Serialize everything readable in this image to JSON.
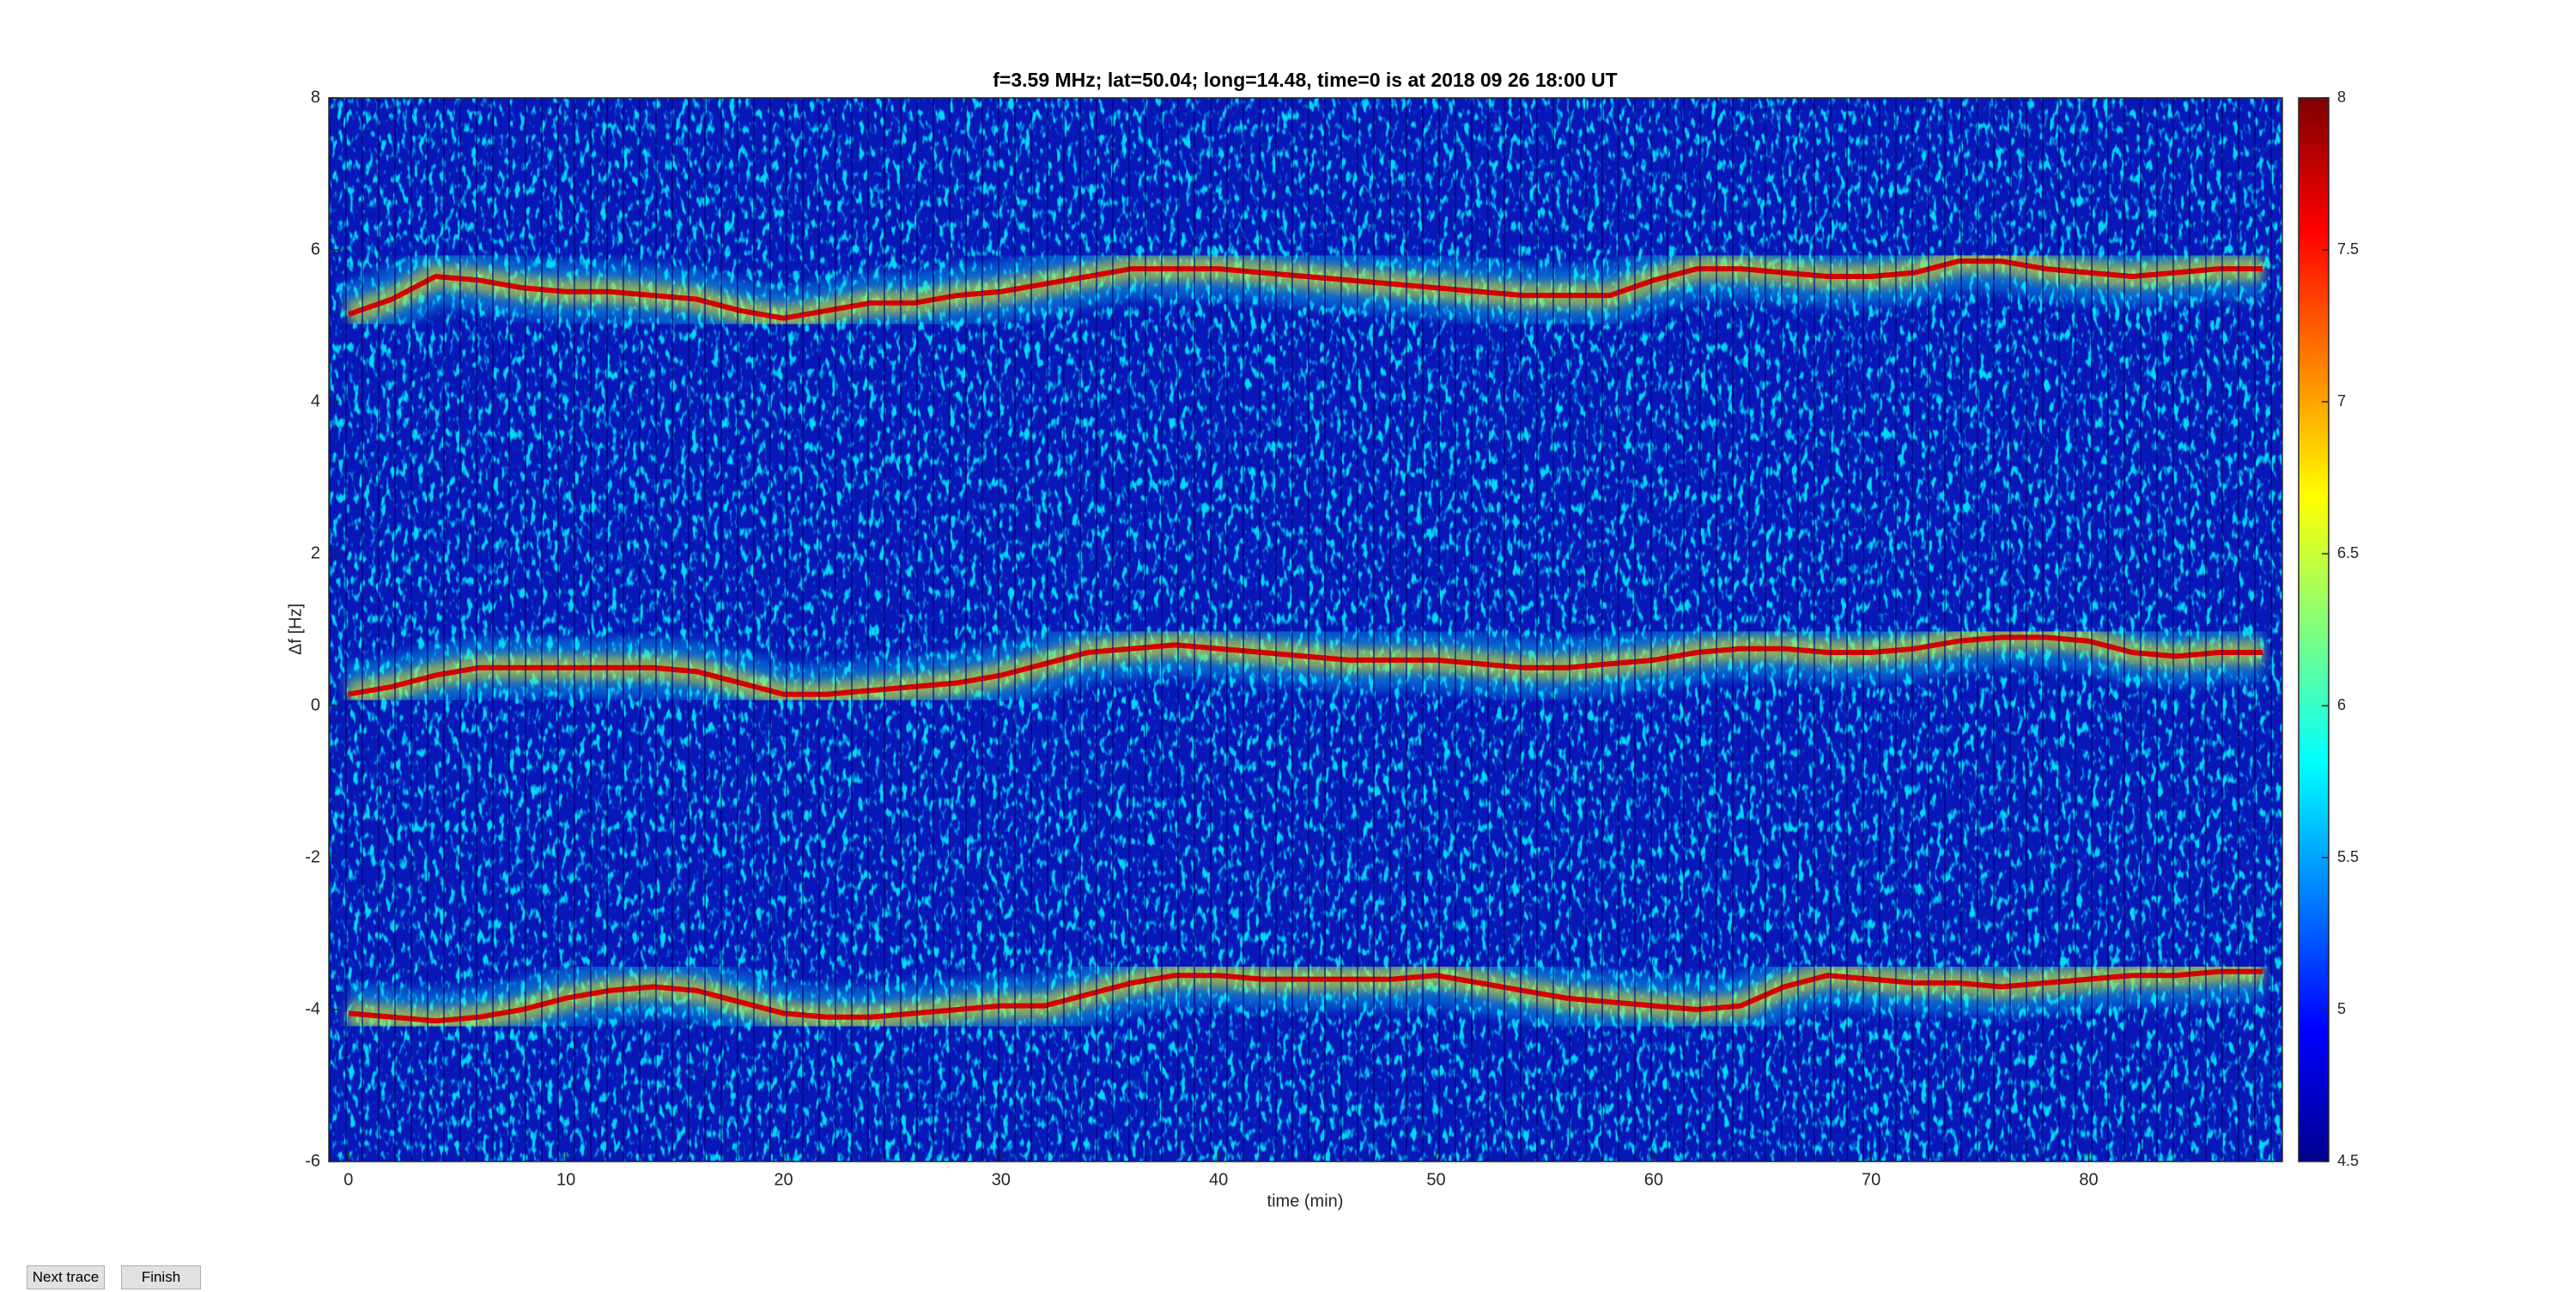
{
  "chart_data": {
    "type": "spectrogram",
    "title": "f=3.59 MHz;  lat=50.04; long=14.48, time=0 is at 2018 09 26 18:00 UT",
    "x_label": "time (min)",
    "y_label": "Δf [Hz]",
    "x": [
      0,
      2,
      4,
      6,
      8,
      10,
      12,
      14,
      16,
      18,
      20,
      22,
      24,
      26,
      28,
      30,
      32,
      34,
      36,
      38,
      40,
      42,
      44,
      46,
      48,
      50,
      52,
      54,
      56,
      58,
      60,
      62,
      64,
      66,
      68,
      70,
      72,
      74,
      76,
      78,
      80,
      82,
      84,
      86,
      88
    ],
    "series": [
      {
        "color": "#d40000",
        "values": [
          5.15,
          5.35,
          5.65,
          5.6,
          5.5,
          5.45,
          5.45,
          5.4,
          5.35,
          5.2,
          5.1,
          5.2,
          5.3,
          5.3,
          5.4,
          5.45,
          5.55,
          5.65,
          5.75,
          5.75,
          5.75,
          5.7,
          5.65,
          5.6,
          5.55,
          5.5,
          5.45,
          5.4,
          5.4,
          5.4,
          5.6,
          5.75,
          5.75,
          5.7,
          5.65,
          5.65,
          5.7,
          5.85,
          5.85,
          5.75,
          5.7,
          5.65,
          5.7,
          5.75,
          5.75
        ]
      },
      {
        "color": "#d40000",
        "values": [
          0.15,
          0.25,
          0.4,
          0.5,
          0.5,
          0.5,
          0.5,
          0.5,
          0.45,
          0.3,
          0.15,
          0.15,
          0.2,
          0.25,
          0.3,
          0.4,
          0.55,
          0.7,
          0.75,
          0.8,
          0.75,
          0.7,
          0.65,
          0.6,
          0.6,
          0.6,
          0.55,
          0.5,
          0.5,
          0.55,
          0.6,
          0.7,
          0.75,
          0.75,
          0.7,
          0.7,
          0.75,
          0.85,
          0.9,
          0.9,
          0.85,
          0.7,
          0.65,
          0.7,
          0.7
        ]
      },
      {
        "color": "#d40000",
        "values": [
          -4.05,
          -4.1,
          -4.15,
          -4.1,
          -4.0,
          -3.85,
          -3.75,
          -3.7,
          -3.75,
          -3.9,
          -4.05,
          -4.1,
          -4.1,
          -4.05,
          -4.0,
          -3.95,
          -3.95,
          -3.8,
          -3.65,
          -3.55,
          -3.55,
          -3.6,
          -3.6,
          -3.6,
          -3.6,
          -3.55,
          -3.65,
          -3.75,
          -3.85,
          -3.9,
          -3.95,
          -4.0,
          -3.95,
          -3.7,
          -3.55,
          -3.6,
          -3.65,
          -3.65,
          -3.7,
          -3.65,
          -3.6,
          -3.55,
          -3.55,
          -3.5,
          -3.5
        ]
      }
    ],
    "xlim": [
      -0.9,
      88.9
    ],
    "xticks": [
      0,
      10,
      20,
      30,
      40,
      50,
      60,
      70,
      80
    ],
    "ylim": [
      -6,
      8
    ],
    "yticks": [
      -6,
      -4,
      -2,
      0,
      2,
      4,
      6,
      8
    ],
    "clim": [
      4.5,
      8
    ],
    "cticks": [
      4.5,
      5,
      5.5,
      6,
      6.5,
      7,
      7.5,
      8
    ],
    "colormap": "jet",
    "grid": false
  },
  "buttons": [
    "Next trace",
    "Finish"
  ]
}
